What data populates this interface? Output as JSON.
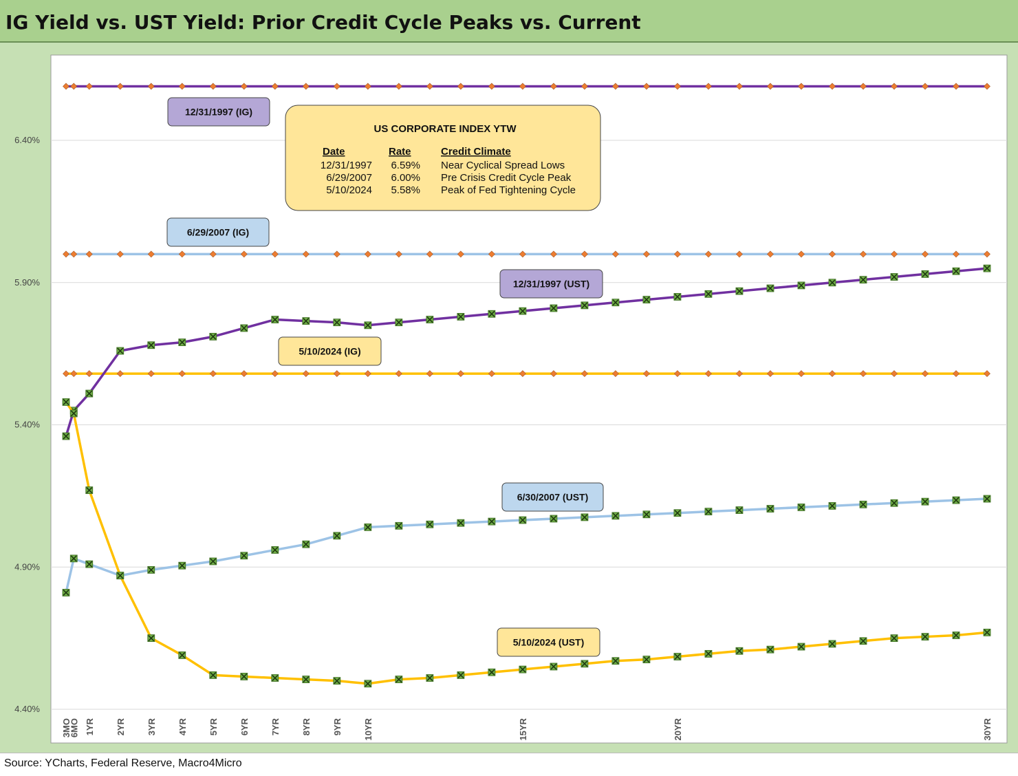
{
  "title": "IG Yield vs. UST Yield: Prior Credit Cycle Peaks vs. Current",
  "source": "Source: YCharts, Federal Reserve, Macro4Micro",
  "colors": {
    "purple": "#7030a0",
    "light_blue": "#9dc3e6",
    "gold": "#ffc000",
    "marker_green": "#70ad47",
    "ig_marker": "#ed7d31",
    "frame_green": "#c6e0b4",
    "title_green": "#a9d08e"
  },
  "legend_box": {
    "title": "US CORPORATE INDEX YTW",
    "headers": [
      "Date",
      "Rate",
      "Credit Climate"
    ],
    "rows": [
      [
        "12/31/1997",
        "6.59%",
        "Near Cyclical Spread Lows"
      ],
      [
        "6/29/2007",
        "6.00%",
        "Pre Crisis Credit Cycle Peak"
      ],
      [
        "5/10/2024",
        "5.58%",
        "Peak of Fed Tightening Cycle"
      ]
    ]
  },
  "chart_data": {
    "type": "line",
    "x": [
      0.25,
      0.5,
      1,
      2,
      3,
      4,
      5,
      6,
      7,
      8,
      9,
      10,
      11,
      12,
      13,
      14,
      15,
      16,
      17,
      18,
      19,
      20,
      21,
      22,
      23,
      24,
      25,
      26,
      27,
      28,
      29,
      30
    ],
    "x_tick_labels": [
      {
        "x": 0.25,
        "label": "3MO"
      },
      {
        "x": 0.5,
        "label": "6MO"
      },
      {
        "x": 1,
        "label": "1YR"
      },
      {
        "x": 2,
        "label": "2YR"
      },
      {
        "x": 3,
        "label": "3YR"
      },
      {
        "x": 4,
        "label": "4YR"
      },
      {
        "x": 5,
        "label": "5YR"
      },
      {
        "x": 6,
        "label": "6YR"
      },
      {
        "x": 7,
        "label": "7YR"
      },
      {
        "x": 8,
        "label": "8YR"
      },
      {
        "x": 9,
        "label": "9YR"
      },
      {
        "x": 10,
        "label": "10YR"
      },
      {
        "x": 15,
        "label": "15YR"
      },
      {
        "x": 20,
        "label": "20YR"
      },
      {
        "x": 30,
        "label": "30YR"
      }
    ],
    "ylim": [
      4.4,
      6.7
    ],
    "y_ticks": [
      4.4,
      4.9,
      5.4,
      5.9,
      6.4
    ],
    "y_tick_labels": [
      "4.40%",
      "4.90%",
      "5.40%",
      "5.90%",
      "6.40%"
    ],
    "grid": true,
    "series": [
      {
        "name": "12/31/1997 (IG)",
        "color": "#7030a0",
        "marker": "diamond",
        "values": [
          6.59,
          6.59,
          6.59,
          6.59,
          6.59,
          6.59,
          6.59,
          6.59,
          6.59,
          6.59,
          6.59,
          6.59,
          6.59,
          6.59,
          6.59,
          6.59,
          6.59,
          6.59,
          6.59,
          6.59,
          6.59,
          6.59,
          6.59,
          6.59,
          6.59,
          6.59,
          6.59,
          6.59,
          6.59,
          6.59,
          6.59,
          6.59
        ]
      },
      {
        "name": "6/29/2007 (IG)",
        "color": "#9dc3e6",
        "marker": "diamond",
        "values": [
          6.0,
          6.0,
          6.0,
          6.0,
          6.0,
          6.0,
          6.0,
          6.0,
          6.0,
          6.0,
          6.0,
          6.0,
          6.0,
          6.0,
          6.0,
          6.0,
          6.0,
          6.0,
          6.0,
          6.0,
          6.0,
          6.0,
          6.0,
          6.0,
          6.0,
          6.0,
          6.0,
          6.0,
          6.0,
          6.0,
          6.0,
          6.0
        ]
      },
      {
        "name": "5/10/2024 (IG)",
        "color": "#ffc000",
        "marker": "diamond",
        "values": [
          5.58,
          5.58,
          5.58,
          5.58,
          5.58,
          5.58,
          5.58,
          5.58,
          5.58,
          5.58,
          5.58,
          5.58,
          5.58,
          5.58,
          5.58,
          5.58,
          5.58,
          5.58,
          5.58,
          5.58,
          5.58,
          5.58,
          5.58,
          5.58,
          5.58,
          5.58,
          5.58,
          5.58,
          5.58,
          5.58,
          5.58,
          5.58
        ]
      },
      {
        "name": "12/31/1997 (UST)",
        "color": "#7030a0",
        "marker": "x",
        "values": [
          5.36,
          5.45,
          5.51,
          5.66,
          5.68,
          5.69,
          5.71,
          5.74,
          5.77,
          5.765,
          5.76,
          5.75,
          5.76,
          5.77,
          5.78,
          5.79,
          5.8,
          5.81,
          5.82,
          5.83,
          5.84,
          5.85,
          5.86,
          5.87,
          5.88,
          5.89,
          5.9,
          5.91,
          5.92,
          5.93,
          5.94,
          5.95
        ]
      },
      {
        "name": "6/30/2007 (UST)",
        "color": "#9dc3e6",
        "marker": "x",
        "values": [
          4.81,
          4.93,
          4.91,
          4.87,
          4.89,
          4.905,
          4.92,
          4.94,
          4.96,
          4.98,
          5.01,
          5.04,
          5.045,
          5.05,
          5.055,
          5.06,
          5.065,
          5.07,
          5.075,
          5.08,
          5.085,
          5.09,
          5.095,
          5.1,
          5.105,
          5.11,
          5.115,
          5.12,
          5.125,
          5.13,
          5.135,
          5.14
        ]
      },
      {
        "name": "5/10/2024 (UST)",
        "color": "#ffc000",
        "marker": "x",
        "values": [
          5.48,
          5.44,
          5.17,
          4.87,
          4.65,
          4.59,
          4.52,
          4.515,
          4.51,
          4.505,
          4.5,
          4.49,
          4.505,
          4.51,
          4.52,
          4.53,
          4.54,
          4.55,
          4.56,
          4.57,
          4.575,
          4.585,
          4.595,
          4.605,
          4.61,
          4.62,
          4.63,
          4.64,
          4.65,
          4.655,
          4.66,
          4.67
        ]
      }
    ],
    "labels": [
      {
        "text": "12/31/1997 (IG)",
        "color": "#b4a7d6"
      },
      {
        "text": "6/29/2007 (IG)",
        "color": "#bdd7ee"
      },
      {
        "text": "5/10/2024 (IG)",
        "color": "#ffe699"
      },
      {
        "text": "12/31/1997 (UST)",
        "color": "#b4a7d6"
      },
      {
        "text": "6/30/2007 (UST)",
        "color": "#bdd7ee"
      },
      {
        "text": "5/10/2024 (UST)",
        "color": "#ffe699"
      }
    ]
  }
}
